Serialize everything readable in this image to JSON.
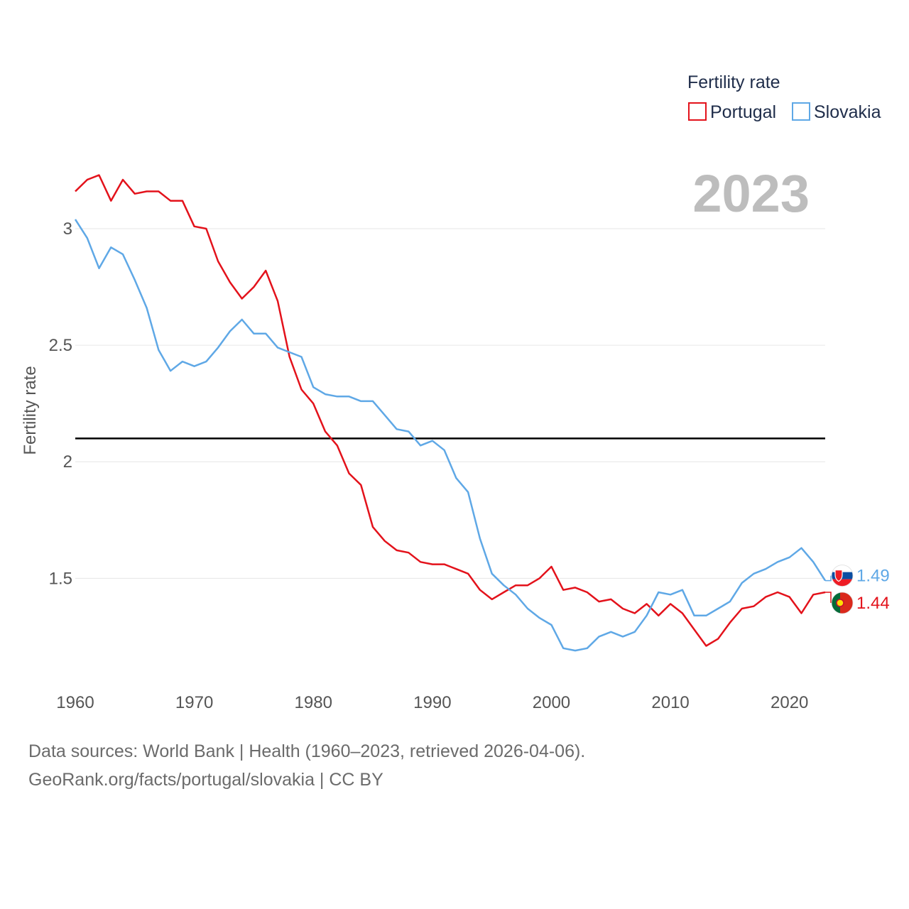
{
  "chart_data": {
    "type": "line",
    "ylabel": "Fertility rate",
    "xlim": [
      1960,
      2023
    ],
    "ylim": [
      1.05,
      3.25
    ],
    "y_ticks": [
      1.5,
      2,
      2.5,
      3
    ],
    "y_tick_labels": [
      "1.5",
      "2",
      "2.5",
      "3"
    ],
    "x_ticks": [
      1960,
      1970,
      1980,
      1990,
      2000,
      2010,
      2020
    ],
    "x_tick_labels": [
      "1960",
      "1970",
      "1980",
      "1990",
      "2000",
      "2010",
      "2020"
    ],
    "grid": true,
    "reference_line": 2.1,
    "legend_title": "Fertility rate",
    "legend_position": "top-right",
    "year_label": "2023",
    "x": [
      1960,
      1961,
      1962,
      1963,
      1964,
      1965,
      1966,
      1967,
      1968,
      1969,
      1970,
      1971,
      1972,
      1973,
      1974,
      1975,
      1976,
      1977,
      1978,
      1979,
      1980,
      1981,
      1982,
      1983,
      1984,
      1985,
      1986,
      1987,
      1988,
      1989,
      1990,
      1991,
      1992,
      1993,
      1994,
      1995,
      1996,
      1997,
      1998,
      1999,
      2000,
      2001,
      2002,
      2003,
      2004,
      2005,
      2006,
      2007,
      2008,
      2009,
      2010,
      2011,
      2012,
      2013,
      2014,
      2015,
      2016,
      2017,
      2018,
      2019,
      2020,
      2021,
      2022,
      2023
    ],
    "series": [
      {
        "name": "Portugal",
        "color": "#e3121b",
        "end_label": "1.44",
        "values": [
          3.16,
          3.21,
          3.23,
          3.12,
          3.21,
          3.15,
          3.16,
          3.16,
          3.12,
          3.12,
          3.01,
          3.0,
          2.86,
          2.77,
          2.7,
          2.75,
          2.82,
          2.69,
          2.45,
          2.31,
          2.25,
          2.13,
          2.07,
          1.95,
          1.9,
          1.72,
          1.66,
          1.62,
          1.61,
          1.57,
          1.56,
          1.56,
          1.54,
          1.52,
          1.45,
          1.41,
          1.44,
          1.47,
          1.47,
          1.5,
          1.55,
          1.45,
          1.46,
          1.44,
          1.4,
          1.41,
          1.37,
          1.35,
          1.39,
          1.34,
          1.39,
          1.35,
          1.28,
          1.21,
          1.24,
          1.31,
          1.37,
          1.38,
          1.42,
          1.44,
          1.42,
          1.35,
          1.43,
          1.44
        ]
      },
      {
        "name": "Slovakia",
        "color": "#5fa8e6",
        "end_label": "1.49",
        "values": [
          3.04,
          2.96,
          2.83,
          2.92,
          2.89,
          2.78,
          2.66,
          2.48,
          2.39,
          2.43,
          2.41,
          2.43,
          2.49,
          2.56,
          2.61,
          2.55,
          2.55,
          2.49,
          2.47,
          2.45,
          2.32,
          2.29,
          2.28,
          2.28,
          2.26,
          2.26,
          2.2,
          2.14,
          2.13,
          2.07,
          2.09,
          2.05,
          1.93,
          1.87,
          1.67,
          1.52,
          1.47,
          1.43,
          1.37,
          1.33,
          1.3,
          1.2,
          1.19,
          1.2,
          1.25,
          1.27,
          1.25,
          1.27,
          1.34,
          1.44,
          1.43,
          1.45,
          1.34,
          1.34,
          1.37,
          1.4,
          1.48,
          1.52,
          1.54,
          1.57,
          1.59,
          1.63,
          1.57,
          1.49
        ]
      }
    ]
  },
  "footer": {
    "line1": "Data sources: World Bank | Health (1960–2023, retrieved 2026-04-06).",
    "line2": "GeoRank.org/facts/portugal/slovakia | CC BY"
  }
}
